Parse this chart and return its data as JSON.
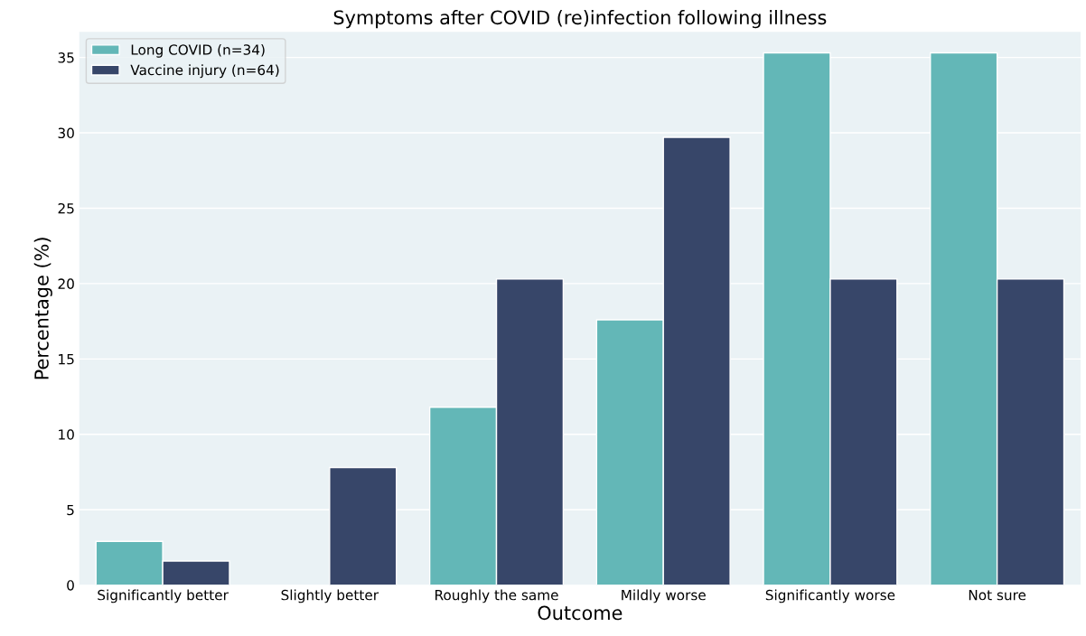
{
  "chart_data": {
    "type": "bar",
    "title": "Symptoms after COVID (re)infection following illness",
    "xlabel": "Outcome",
    "ylabel": "Percentage (%)",
    "categories": [
      "Significantly better",
      "Slightly better",
      "Roughly the same",
      "Mildly worse",
      "Significantly worse",
      "Not sure"
    ],
    "series": [
      {
        "name": "Long COVID (n=34)",
        "color": "#63b7b7",
        "values": [
          2.9,
          0,
          11.8,
          17.6,
          35.3,
          35.3
        ]
      },
      {
        "name": "Vaccine injury (n=64)",
        "color": "#374669",
        "values": [
          1.6,
          7.8,
          20.3,
          29.7,
          20.3,
          20.3
        ]
      }
    ],
    "ylim": [
      0,
      36.7
    ],
    "yticks": [
      0,
      5,
      10,
      15,
      20,
      25,
      30,
      35
    ],
    "grid": "y",
    "legend": "top left"
  }
}
